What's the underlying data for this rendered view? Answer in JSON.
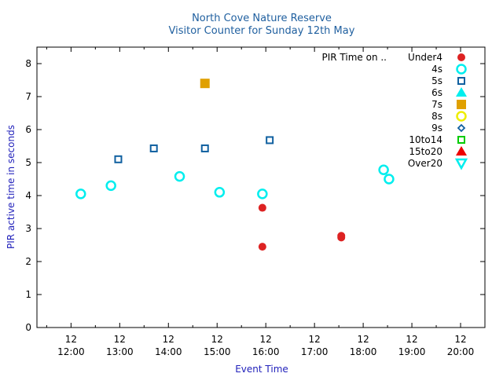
{
  "chart_data": {
    "type": "scatter",
    "title": "North Cove Nature Reserve",
    "subtitle": "Visitor Counter for Sunday 12th May",
    "xlabel": "Event Time",
    "ylabel": "PIR active time in seconds",
    "xlim": [
      11.3,
      20.5
    ],
    "ylim": [
      0,
      8.5
    ],
    "grid": false,
    "legend_placement": "top-right",
    "legend_title": "PIR Time on ..",
    "x_ticks": [
      {
        "value": 12,
        "day": "12",
        "time": "12:00"
      },
      {
        "value": 13,
        "day": "12",
        "time": "13:00"
      },
      {
        "value": 14,
        "day": "12",
        "time": "14:00"
      },
      {
        "value": 15,
        "day": "12",
        "time": "15:00"
      },
      {
        "value": 16,
        "day": "12",
        "time": "16:00"
      },
      {
        "value": 17,
        "day": "12",
        "time": "17:00"
      },
      {
        "value": 18,
        "day": "12",
        "time": "18:00"
      },
      {
        "value": 19,
        "day": "12",
        "time": "19:00"
      },
      {
        "value": 20,
        "day": "12",
        "time": "20:00"
      }
    ],
    "y_ticks": [
      "0",
      "1",
      "2",
      "3",
      "4",
      "5",
      "6",
      "7",
      "8"
    ],
    "series": [
      {
        "name": "Under4",
        "marker": "filled-circle",
        "color": "#dd2222",
        "points": [
          {
            "x": 15.93,
            "y": 3.63
          },
          {
            "x": 15.93,
            "y": 2.45
          },
          {
            "x": 17.55,
            "y": 2.78
          },
          {
            "x": 17.55,
            "y": 2.73
          }
        ]
      },
      {
        "name": "4s",
        "marker": "open-circle",
        "color": "#00eeee",
        "points": [
          {
            "x": 12.2,
            "y": 4.05
          },
          {
            "x": 12.82,
            "y": 4.3
          },
          {
            "x": 14.23,
            "y": 4.58
          },
          {
            "x": 15.05,
            "y": 4.1
          },
          {
            "x": 15.93,
            "y": 4.05
          },
          {
            "x": 18.42,
            "y": 4.78
          },
          {
            "x": 18.53,
            "y": 4.5
          }
        ]
      },
      {
        "name": "5s",
        "marker": "open-square",
        "color": "#1060a0",
        "points": [
          {
            "x": 12.97,
            "y": 5.1
          },
          {
            "x": 13.7,
            "y": 5.43
          },
          {
            "x": 14.75,
            "y": 5.43
          },
          {
            "x": 16.08,
            "y": 5.68
          }
        ]
      },
      {
        "name": "6s",
        "marker": "filled-triangle",
        "color": "#00eeee",
        "points": []
      },
      {
        "name": "7s",
        "marker": "filled-square",
        "color": "#e0a000",
        "points": [
          {
            "x": 14.75,
            "y": 7.4
          }
        ]
      },
      {
        "name": "8s",
        "marker": "open-circle",
        "color": "#eeee00",
        "points": []
      },
      {
        "name": "9s",
        "marker": "open-diamond",
        "color": "#1060a0",
        "points": []
      },
      {
        "name": "10to14",
        "marker": "open-square",
        "color": "#00cc00",
        "points": []
      },
      {
        "name": "15to20",
        "marker": "filled-triangle",
        "color": "#ee0000",
        "points": []
      },
      {
        "name": "Over20",
        "marker": "open-triangle-down",
        "color": "#00eeee",
        "points": []
      }
    ]
  }
}
